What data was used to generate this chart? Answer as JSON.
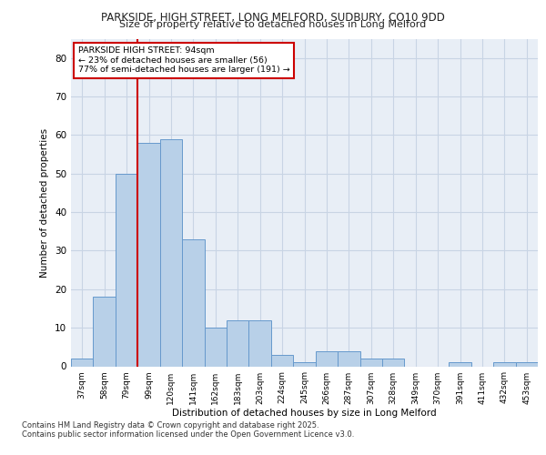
{
  "title1": "PARKSIDE, HIGH STREET, LONG MELFORD, SUDBURY, CO10 9DD",
  "title2": "Size of property relative to detached houses in Long Melford",
  "xlabel": "Distribution of detached houses by size in Long Melford",
  "ylabel": "Number of detached properties",
  "categories": [
    "37sqm",
    "58sqm",
    "79sqm",
    "99sqm",
    "120sqm",
    "141sqm",
    "162sqm",
    "183sqm",
    "203sqm",
    "224sqm",
    "245sqm",
    "266sqm",
    "287sqm",
    "307sqm",
    "328sqm",
    "349sqm",
    "370sqm",
    "391sqm",
    "411sqm",
    "432sqm",
    "453sqm"
  ],
  "values": [
    2,
    18,
    50,
    58,
    59,
    33,
    10,
    12,
    12,
    3,
    1,
    4,
    4,
    2,
    2,
    0,
    0,
    1,
    0,
    1,
    1
  ],
  "bar_color": "#b8d0e8",
  "bar_edge_color": "#6699cc",
  "grid_color": "#c8d4e4",
  "bg_color": "#e8eef6",
  "vline_color": "#cc0000",
  "annotation_text": "PARKSIDE HIGH STREET: 94sqm\n← 23% of detached houses are smaller (56)\n77% of semi-detached houses are larger (191) →",
  "annotation_box_color": "#cc0000",
  "footer1": "Contains HM Land Registry data © Crown copyright and database right 2025.",
  "footer2": "Contains public sector information licensed under the Open Government Licence v3.0.",
  "ylim": [
    0,
    85
  ],
  "yticks": [
    0,
    10,
    20,
    30,
    40,
    50,
    60,
    70,
    80
  ]
}
